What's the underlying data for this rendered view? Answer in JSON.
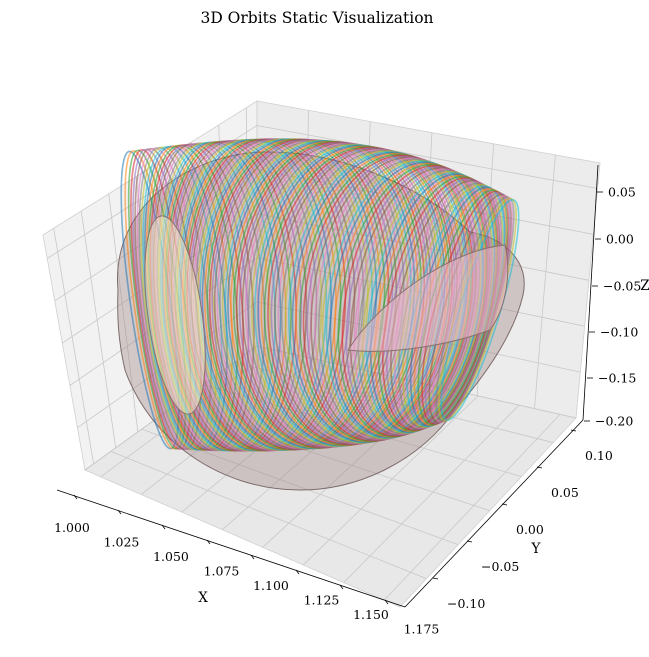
{
  "chart_data": {
    "type": "surface3d",
    "title": "3D Orbits Static Visualization",
    "xlabel": "X",
    "ylabel": "Y",
    "zlabel": "Z",
    "xticks": [
      "1.000",
      "1.025",
      "1.050",
      "1.075",
      "1.100",
      "1.125",
      "1.150",
      "1.175"
    ],
    "yticks": [
      "−0.10",
      "−0.05",
      "0.00",
      "0.05",
      "0.10"
    ],
    "zticks": [
      "0.05",
      "0.00",
      "−0.05",
      "−0.10",
      "−0.15",
      "−0.20"
    ],
    "xlim": [
      0.99,
      1.185
    ],
    "ylim": [
      -0.13,
      0.13
    ],
    "zlim": [
      -0.2,
      0.07
    ],
    "grid": true,
    "palette": [
      "#1f77b4",
      "#ff7f0e",
      "#2ca02c",
      "#d62728",
      "#9467bd",
      "#8c564b",
      "#e377c2",
      "#7f7f7f",
      "#bcbd22",
      "#17becf"
    ],
    "orbit_count": 110
  }
}
